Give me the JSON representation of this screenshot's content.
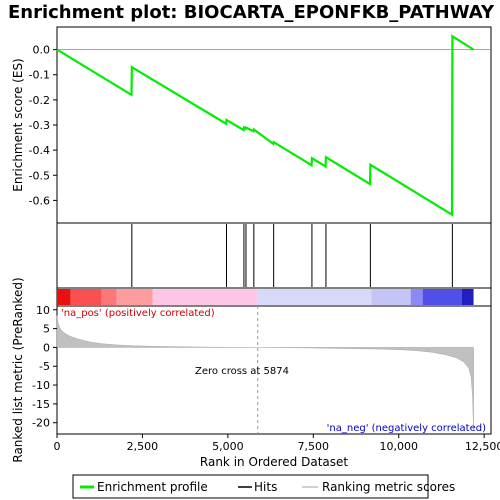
{
  "chart_data": {
    "type": "line",
    "title": "Enrichment plot: BIOCARTA_EPONFKB_PATHWAY",
    "xlabel": "Rank in Ordered Dataset",
    "ylabel_top": "Enrichment score (ES)",
    "ylabel_bottom": "Ranked list metric (PreRanked)",
    "xlim": [
      0,
      12700
    ],
    "x_ticks": [
      0,
      2500,
      5000,
      7500,
      10000,
      12500
    ],
    "x_tick_labels": [
      "0",
      "2,500",
      "5,000",
      "7,500",
      "10,000",
      "12,500"
    ],
    "es_ylim": [
      -0.69,
      0.09
    ],
    "es_ticks": [
      0.0,
      -0.1,
      -0.2,
      -0.3,
      -0.4,
      -0.5,
      -0.6
    ],
    "es_tick_labels": [
      "0.0",
      "-0.1",
      "-0.2",
      "-0.3",
      "-0.4",
      "-0.5",
      "-0.6"
    ],
    "metric_ylim": [
      -23,
      11
    ],
    "metric_ticks": [
      10,
      5,
      0,
      -5,
      -10,
      -15,
      -20
    ],
    "metric_tick_labels": [
      "10",
      "5",
      "0",
      "-5",
      "-10",
      "-15",
      "-20"
    ],
    "hits": [
      2190,
      4960,
      5470,
      5530,
      5760,
      6340,
      7460,
      7870,
      9170,
      11570
    ],
    "es_profile": {
      "x": [
        0,
        2180,
        2190,
        4950,
        4960,
        5460,
        5470,
        5520,
        5530,
        5750,
        5760,
        6330,
        6340,
        7450,
        7460,
        7860,
        7870,
        9160,
        9170,
        11560,
        11570,
        12190
      ],
      "y": [
        0.0,
        -0.18,
        -0.07,
        -0.295,
        -0.28,
        -0.32,
        -0.31,
        -0.315,
        -0.31,
        -0.325,
        -0.318,
        -0.375,
        -0.368,
        -0.46,
        -0.432,
        -0.465,
        -0.428,
        -0.535,
        -0.458,
        -0.657,
        0.053,
        0.0
      ]
    },
    "metric_profile": {
      "x": [
        0,
        30,
        80,
        150,
        250,
        400,
        600,
        800,
        1000,
        1300,
        1700,
        2200,
        2800,
        3500,
        4200,
        5000,
        5874,
        6500,
        7500,
        8500,
        9500,
        10000,
        10500,
        11000,
        11400,
        11700,
        11900,
        12050,
        12120,
        12160,
        12190
      ],
      "y": [
        8.5,
        6.5,
        5.2,
        4.3,
        3.6,
        2.9,
        2.3,
        1.8,
        1.4,
        1.0,
        0.7,
        0.45,
        0.3,
        0.18,
        0.1,
        0.04,
        0.0,
        -0.05,
        -0.15,
        -0.3,
        -0.45,
        -0.6,
        -0.85,
        -1.3,
        -2.0,
        -2.8,
        -3.8,
        -5.5,
        -8.0,
        -13.0,
        -22.0
      ]
    },
    "zero_cross": 5874,
    "zero_cross_label": "Zero cross at 5874",
    "pos_label": "'na_pos' (positively correlated)",
    "neg_label": "'na_neg' (negatively correlated)",
    "pos_label_color": "#cc0000",
    "neg_label_color": "#0000cc",
    "profile_color": "#00ee00",
    "heatmap_segments": [
      {
        "start": 0,
        "end": 400,
        "color": "#e81010"
      },
      {
        "start": 400,
        "end": 1300,
        "color": "#fa5050"
      },
      {
        "start": 1300,
        "end": 1750,
        "color": "#fc7878"
      },
      {
        "start": 1750,
        "end": 2800,
        "color": "#fd9c9c"
      },
      {
        "start": 2800,
        "end": 5874,
        "color": "#fcc6e4"
      },
      {
        "start": 5874,
        "end": 9200,
        "color": "#d8d8f8"
      },
      {
        "start": 9200,
        "end": 10350,
        "color": "#c4c4f6"
      },
      {
        "start": 10350,
        "end": 10700,
        "color": "#8a8af0"
      },
      {
        "start": 10700,
        "end": 11850,
        "color": "#5050e8"
      },
      {
        "start": 11850,
        "end": 12190,
        "color": "#2020c0"
      }
    ],
    "legend": [
      {
        "label": "Enrichment profile",
        "kind": "profile",
        "color": "#00ee00"
      },
      {
        "label": "Hits",
        "kind": "hits",
        "color": "#000000"
      },
      {
        "label": "Ranking metric scores",
        "kind": "metric",
        "color": "#c0c0c0"
      }
    ]
  }
}
